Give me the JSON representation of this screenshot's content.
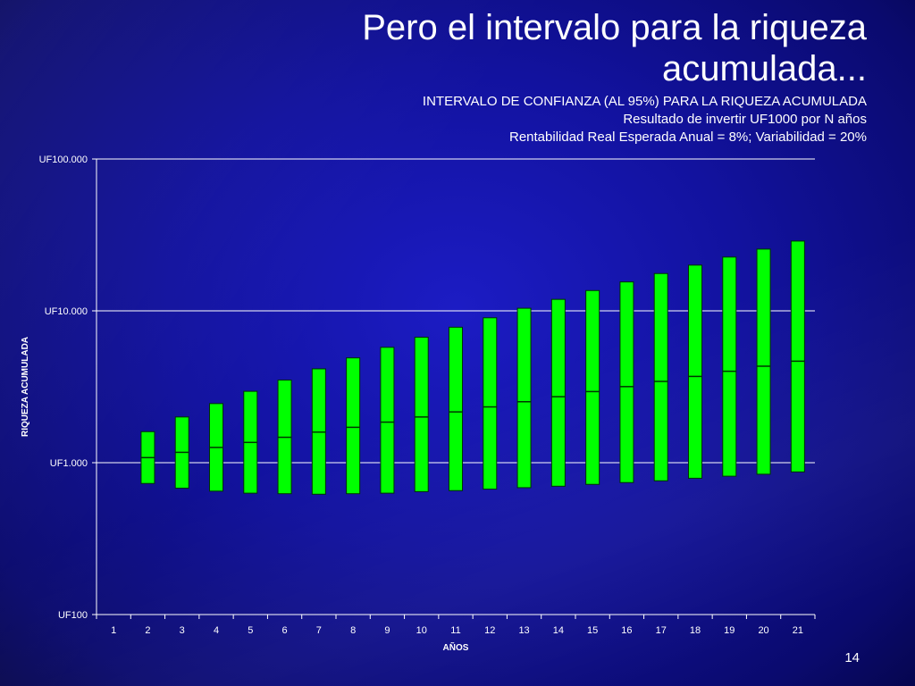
{
  "slide": {
    "title_line1": "Pero el intervalo para la riqueza",
    "title_line2": "acumulada...",
    "subtitle1": "INTERVALO DE CONFIANZA (AL 95%) PARA LA RIQUEZA ACUMULADA",
    "subtitle2": "Resultado de invertir UF1000 por N años",
    "subtitle3": "Rentabilidad Real Esperada Anual = 8%; Variabilidad = 20%",
    "page_number": "14"
  },
  "colors": {
    "bar_fill": "#00ff00",
    "bar_stroke": "#003300",
    "grid": "#ffffff",
    "text": "#ffffff"
  },
  "chart_data": {
    "type": "range_bar",
    "xlabel": "AÑOS",
    "ylabel": "RIQUEZA ACUMULADA",
    "y_scale": "log",
    "ylim": [
      100,
      100000
    ],
    "y_ticks": [
      {
        "value": 100,
        "label": "UF100"
      },
      {
        "value": 1000,
        "label": "UF1.000"
      },
      {
        "value": 10000,
        "label": "UF10.000"
      },
      {
        "value": 100000,
        "label": "UF100.000"
      }
    ],
    "grid": true,
    "categories": [
      "1",
      "2",
      "3",
      "4",
      "5",
      "6",
      "7",
      "8",
      "9",
      "10",
      "11",
      "12",
      "13",
      "14",
      "15",
      "16",
      "17",
      "18",
      "19",
      "20",
      "21"
    ],
    "low": [
      null,
      730,
      680,
      650,
      630,
      625,
      620,
      625,
      630,
      645,
      655,
      670,
      685,
      700,
      720,
      740,
      760,
      790,
      815,
      840,
      870
    ],
    "median": [
      null,
      1080,
      1170,
      1260,
      1360,
      1470,
      1590,
      1710,
      1850,
      2000,
      2160,
      2330,
      2520,
      2720,
      2940,
      3170,
      3430,
      3700,
      4000,
      4320,
      4660
    ],
    "high": [
      null,
      1600,
      2000,
      2450,
      2950,
      3500,
      4150,
      4900,
      5750,
      6700,
      7800,
      9000,
      10400,
      11900,
      13600,
      15500,
      17600,
      20000,
      22600,
      25500,
      28800
    ]
  }
}
